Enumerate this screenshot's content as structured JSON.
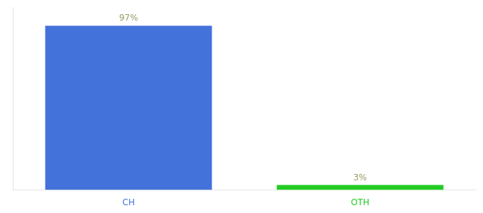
{
  "chart_data": {
    "type": "bar",
    "categories": [
      "CH",
      "OTH"
    ],
    "values": [
      97,
      3
    ],
    "value_labels": [
      "97%",
      "3%"
    ],
    "colors": [
      "#4472db",
      "#22cc22"
    ],
    "ylim": [
      0,
      108
    ],
    "yticks": [],
    "grid": false,
    "data_labels": true,
    "tick_labels": "x"
  }
}
